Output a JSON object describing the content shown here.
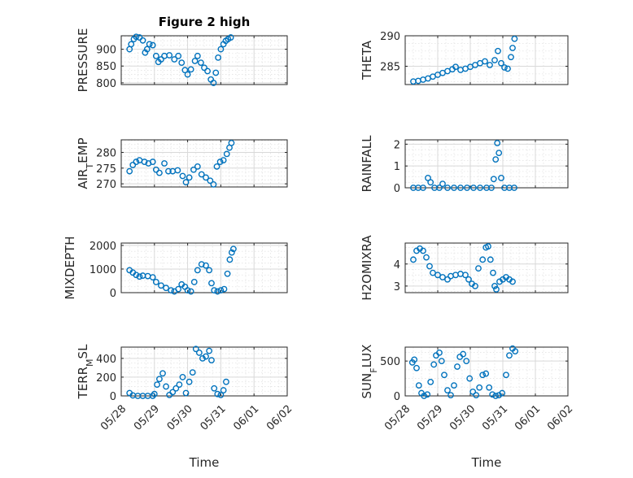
{
  "chart_data": [
    {
      "type": "scatter",
      "title": "Figure 2 high",
      "ylabel": "PRESSURE",
      "ylabel_sub": null,
      "ylim": [
        795,
        940
      ],
      "yticks": [
        800,
        850,
        900
      ],
      "yticklabels": [
        "800",
        "850",
        "900"
      ],
      "xlim": [
        "05/28",
        "06/02"
      ],
      "xticklabels": [
        "05/28",
        "05/29",
        "05/30",
        "05/31",
        "06/01",
        "06/02"
      ],
      "xlabel": "",
      "show_xticklabels": false,
      "series_color": "#0072BD",
      "values": [
        [
          0.25,
          900
        ],
        [
          0.3,
          915
        ],
        [
          0.38,
          930
        ],
        [
          0.45,
          937
        ],
        [
          0.55,
          935
        ],
        [
          0.65,
          926
        ],
        [
          0.72,
          890
        ],
        [
          0.78,
          900
        ],
        [
          0.85,
          915
        ],
        [
          0.95,
          912
        ],
        [
          1.05,
          880
        ],
        [
          1.12,
          862
        ],
        [
          1.2,
          870
        ],
        [
          1.3,
          880
        ],
        [
          1.45,
          882
        ],
        [
          1.6,
          870
        ],
        [
          1.72,
          880
        ],
        [
          1.82,
          860
        ],
        [
          1.92,
          838
        ],
        [
          2.0,
          825
        ],
        [
          2.1,
          840
        ],
        [
          2.22,
          865
        ],
        [
          2.3,
          880
        ],
        [
          2.4,
          860
        ],
        [
          2.5,
          845
        ],
        [
          2.6,
          835
        ],
        [
          2.7,
          810
        ],
        [
          2.78,
          800
        ],
        [
          2.85,
          830
        ],
        [
          2.92,
          875
        ],
        [
          3.0,
          900
        ],
        [
          3.08,
          915
        ],
        [
          3.15,
          925
        ],
        [
          3.22,
          930
        ],
        [
          3.3,
          935
        ]
      ]
    },
    {
      "type": "scatter",
      "title": "",
      "ylabel": "THETA",
      "ylabel_sub": null,
      "ylim": [
        282,
        290
      ],
      "yticks": [
        285,
        290
      ],
      "yticklabels": [
        "285",
        "290"
      ],
      "xlim": [
        "05/28",
        "06/02"
      ],
      "xticklabels": [
        "05/28",
        "05/29",
        "05/30",
        "05/31",
        "06/01",
        "06/02"
      ],
      "xlabel": "",
      "show_xticklabels": false,
      "series_color": "#0072BD",
      "values": [
        [
          0.25,
          282.5
        ],
        [
          0.4,
          282.6
        ],
        [
          0.55,
          282.8
        ],
        [
          0.7,
          283.0
        ],
        [
          0.85,
          283.3
        ],
        [
          1.0,
          283.6
        ],
        [
          1.15,
          283.9
        ],
        [
          1.3,
          284.2
        ],
        [
          1.45,
          284.5
        ],
        [
          1.55,
          284.9
        ],
        [
          1.7,
          284.4
        ],
        [
          1.85,
          284.6
        ],
        [
          2.0,
          284.9
        ],
        [
          2.15,
          285.2
        ],
        [
          2.3,
          285.5
        ],
        [
          2.45,
          285.8
        ],
        [
          2.6,
          285.2
        ],
        [
          2.75,
          286.0
        ],
        [
          2.85,
          287.5
        ],
        [
          2.95,
          285.5
        ],
        [
          3.05,
          284.8
        ],
        [
          3.15,
          284.6
        ],
        [
          3.25,
          286.5
        ],
        [
          3.3,
          288.0
        ],
        [
          3.36,
          289.5
        ]
      ]
    },
    {
      "type": "scatter",
      "title": "",
      "ylabel": "AIR",
      "ylabel_sub": "T",
      "ylabel_suffix": "EMP",
      "ylim": [
        269,
        284
      ],
      "yticks": [
        270,
        275,
        280
      ],
      "yticklabels": [
        "270",
        "275",
        "280"
      ],
      "xlim": [
        "05/28",
        "06/02"
      ],
      "xticklabels": [
        "05/28",
        "05/29",
        "05/30",
        "05/31",
        "06/01",
        "06/02"
      ],
      "xlabel": "",
      "show_xticklabels": false,
      "series_color": "#0072BD",
      "values": [
        [
          0.25,
          274
        ],
        [
          0.35,
          276
        ],
        [
          0.45,
          277
        ],
        [
          0.55,
          277.5
        ],
        [
          0.7,
          277
        ],
        [
          0.82,
          276.5
        ],
        [
          0.95,
          277
        ],
        [
          1.05,
          274.5
        ],
        [
          1.15,
          273.5
        ],
        [
          1.3,
          276.5
        ],
        [
          1.42,
          274
        ],
        [
          1.55,
          274
        ],
        [
          1.7,
          274.3
        ],
        [
          1.85,
          272.5
        ],
        [
          1.95,
          270.5
        ],
        [
          2.05,
          272
        ],
        [
          2.18,
          274.5
        ],
        [
          2.3,
          275.5
        ],
        [
          2.42,
          273
        ],
        [
          2.55,
          272
        ],
        [
          2.68,
          271
        ],
        [
          2.78,
          269.8
        ],
        [
          2.88,
          275.5
        ],
        [
          2.98,
          277
        ],
        [
          3.08,
          277.5
        ],
        [
          3.18,
          279.5
        ],
        [
          3.26,
          281.5
        ],
        [
          3.32,
          283
        ]
      ]
    },
    {
      "type": "scatter",
      "title": "",
      "ylabel": "RAINFALL",
      "ylabel_sub": null,
      "ylim": [
        0,
        2.2
      ],
      "yticks": [
        0,
        1,
        2
      ],
      "yticklabels": [
        "0",
        "1",
        "2"
      ],
      "xlim": [
        "05/28",
        "06/02"
      ],
      "xticklabels": [
        "05/28",
        "05/29",
        "05/30",
        "05/31",
        "06/01",
        "06/02"
      ],
      "xlabel": "",
      "show_xticklabels": false,
      "series_color": "#0072BD",
      "values": [
        [
          0.25,
          0
        ],
        [
          0.4,
          0
        ],
        [
          0.55,
          0
        ],
        [
          0.7,
          0.45
        ],
        [
          0.78,
          0.25
        ],
        [
          0.9,
          0
        ],
        [
          1.05,
          0
        ],
        [
          1.15,
          0.18
        ],
        [
          1.3,
          0
        ],
        [
          1.5,
          0
        ],
        [
          1.7,
          0
        ],
        [
          1.9,
          0
        ],
        [
          2.1,
          0
        ],
        [
          2.3,
          0
        ],
        [
          2.5,
          0
        ],
        [
          2.65,
          0
        ],
        [
          2.72,
          0.4
        ],
        [
          2.78,
          1.3
        ],
        [
          2.83,
          2.05
        ],
        [
          2.88,
          1.6
        ],
        [
          2.95,
          0.45
        ],
        [
          3.05,
          0
        ],
        [
          3.2,
          0
        ],
        [
          3.35,
          0
        ]
      ]
    },
    {
      "type": "scatter",
      "title": "",
      "ylabel": "MIXDEPTH",
      "ylabel_sub": null,
      "ylim": [
        0,
        2100
      ],
      "yticks": [
        0,
        1000,
        2000
      ],
      "yticklabels": [
        "0",
        "1000",
        "2000"
      ],
      "xlim": [
        "05/28",
        "06/02"
      ],
      "xticklabels": [
        "05/28",
        "05/29",
        "05/30",
        "05/31",
        "06/01",
        "06/02"
      ],
      "xlabel": "",
      "show_xticklabels": false,
      "series_color": "#0072BD",
      "values": [
        [
          0.25,
          950
        ],
        [
          0.35,
          850
        ],
        [
          0.45,
          750
        ],
        [
          0.55,
          680
        ],
        [
          0.65,
          720
        ],
        [
          0.8,
          700
        ],
        [
          0.95,
          650
        ],
        [
          1.05,
          450
        ],
        [
          1.2,
          300
        ],
        [
          1.35,
          200
        ],
        [
          1.5,
          100
        ],
        [
          1.6,
          50
        ],
        [
          1.72,
          150
        ],
        [
          1.82,
          350
        ],
        [
          1.92,
          250
        ],
        [
          2.0,
          100
        ],
        [
          2.1,
          50
        ],
        [
          2.2,
          450
        ],
        [
          2.3,
          950
        ],
        [
          2.42,
          1200
        ],
        [
          2.55,
          1150
        ],
        [
          2.65,
          950
        ],
        [
          2.72,
          400
        ],
        [
          2.8,
          100
        ],
        [
          2.9,
          50
        ],
        [
          3.0,
          100
        ],
        [
          3.1,
          150
        ],
        [
          3.2,
          800
        ],
        [
          3.27,
          1400
        ],
        [
          3.33,
          1700
        ],
        [
          3.38,
          1850
        ]
      ]
    },
    {
      "type": "scatter",
      "title": "",
      "ylabel": "H2OMIXRA",
      "ylabel_sub": null,
      "ylim": [
        2.7,
        4.95
      ],
      "yticks": [
        3,
        4
      ],
      "yticklabels": [
        "3",
        "4"
      ],
      "xlim": [
        "05/28",
        "06/02"
      ],
      "xticklabels": [
        "05/28",
        "05/29",
        "05/30",
        "05/31",
        "06/01",
        "06/02"
      ],
      "xlabel": "",
      "show_xticklabels": false,
      "series_color": "#0072BD",
      "values": [
        [
          0.25,
          4.2
        ],
        [
          0.35,
          4.6
        ],
        [
          0.45,
          4.7
        ],
        [
          0.55,
          4.6
        ],
        [
          0.65,
          4.3
        ],
        [
          0.75,
          3.9
        ],
        [
          0.85,
          3.6
        ],
        [
          1.0,
          3.5
        ],
        [
          1.15,
          3.4
        ],
        [
          1.3,
          3.3
        ],
        [
          1.4,
          3.45
        ],
        [
          1.55,
          3.5
        ],
        [
          1.7,
          3.55
        ],
        [
          1.85,
          3.5
        ],
        [
          1.95,
          3.3
        ],
        [
          2.05,
          3.1
        ],
        [
          2.15,
          3.0
        ],
        [
          2.25,
          3.8
        ],
        [
          2.38,
          4.2
        ],
        [
          2.48,
          4.75
        ],
        [
          2.55,
          4.8
        ],
        [
          2.62,
          4.2
        ],
        [
          2.7,
          3.6
        ],
        [
          2.75,
          3.0
        ],
        [
          2.8,
          2.85
        ],
        [
          2.9,
          3.2
        ],
        [
          3.0,
          3.3
        ],
        [
          3.1,
          3.4
        ],
        [
          3.2,
          3.3
        ],
        [
          3.3,
          3.2
        ]
      ]
    },
    {
      "type": "scatter",
      "title": "",
      "ylabel": "TERR",
      "ylabel_sub": "M",
      "ylabel_suffix": "SL",
      "ylim": [
        0,
        520
      ],
      "yticks": [
        0,
        200,
        400
      ],
      "yticklabels": [
        "0",
        "200",
        "400"
      ],
      "xlim": [
        "05/28",
        "06/02"
      ],
      "xticklabels": [
        "05/28",
        "05/29",
        "05/30",
        "05/31",
        "06/01",
        "06/02"
      ],
      "xlabel": "Time",
      "show_xticklabels": true,
      "series_color": "#0072BD",
      "values": [
        [
          0.25,
          30
        ],
        [
          0.35,
          5
        ],
        [
          0.5,
          0
        ],
        [
          0.65,
          0
        ],
        [
          0.8,
          0
        ],
        [
          0.95,
          0
        ],
        [
          1.0,
          20
        ],
        [
          1.08,
          120
        ],
        [
          1.15,
          180
        ],
        [
          1.25,
          240
        ],
        [
          1.35,
          100
        ],
        [
          1.45,
          10
        ],
        [
          1.55,
          40
        ],
        [
          1.65,
          80
        ],
        [
          1.75,
          120
        ],
        [
          1.85,
          200
        ],
        [
          1.95,
          30
        ],
        [
          2.05,
          150
        ],
        [
          2.15,
          250
        ],
        [
          2.25,
          500
        ],
        [
          2.35,
          460
        ],
        [
          2.45,
          400
        ],
        [
          2.55,
          420
        ],
        [
          2.65,
          480
        ],
        [
          2.72,
          380
        ],
        [
          2.8,
          80
        ],
        [
          2.9,
          20
        ],
        [
          3.0,
          10
        ],
        [
          3.08,
          60
        ],
        [
          3.16,
          150
        ]
      ]
    },
    {
      "type": "scatter",
      "title": "",
      "ylabel": "SUN",
      "ylabel_sub": "F",
      "ylabel_suffix": "LUX",
      "ylim": [
        0,
        700
      ],
      "yticks": [
        0,
        500
      ],
      "yticklabels": [
        "0",
        "500"
      ],
      "xlim": [
        "05/28",
        "06/02"
      ],
      "xticklabels": [
        "05/28",
        "05/29",
        "05/30",
        "05/31",
        "06/01",
        "06/02"
      ],
      "xlabel": "Time",
      "show_xticklabels": true,
      "series_color": "#0072BD",
      "values": [
        [
          0.22,
          480
        ],
        [
          0.28,
          520
        ],
        [
          0.35,
          400
        ],
        [
          0.42,
          150
        ],
        [
          0.5,
          40
        ],
        [
          0.58,
          0
        ],
        [
          0.68,
          20
        ],
        [
          0.78,
          200
        ],
        [
          0.88,
          450
        ],
        [
          0.95,
          580
        ],
        [
          1.05,
          620
        ],
        [
          1.12,
          500
        ],
        [
          1.2,
          300
        ],
        [
          1.3,
          80
        ],
        [
          1.4,
          10
        ],
        [
          1.5,
          150
        ],
        [
          1.6,
          420
        ],
        [
          1.68,
          560
        ],
        [
          1.78,
          600
        ],
        [
          1.88,
          500
        ],
        [
          1.98,
          250
        ],
        [
          2.08,
          60
        ],
        [
          2.18,
          10
        ],
        [
          2.28,
          120
        ],
        [
          2.38,
          300
        ],
        [
          2.48,
          320
        ],
        [
          2.58,
          120
        ],
        [
          2.68,
          20
        ],
        [
          2.78,
          0
        ],
        [
          2.88,
          10
        ],
        [
          2.98,
          40
        ],
        [
          3.1,
          300
        ],
        [
          3.2,
          580
        ],
        [
          3.3,
          680
        ],
        [
          3.38,
          640
        ]
      ]
    }
  ]
}
